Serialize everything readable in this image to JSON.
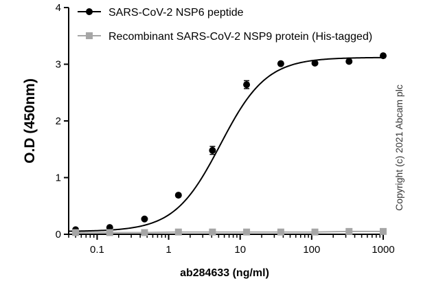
{
  "chart_data": {
    "type": "scatter",
    "xlabel": "ab284633 (ng/ml)",
    "ylabel": "O.D (450nm)",
    "xscale": "log",
    "xlim": [
      0.04,
      1000
    ],
    "ylim": [
      0,
      4
    ],
    "xticks": [
      0.1,
      1,
      10,
      100,
      1000
    ],
    "xtick_labels": [
      "0.1",
      "1",
      "10",
      "100",
      "1000"
    ],
    "yticks": [
      0,
      1,
      2,
      3,
      4
    ],
    "ytick_labels": [
      "0",
      "1",
      "2",
      "3",
      "4"
    ],
    "legend_position": "top-left",
    "series": [
      {
        "name": "SARS-CoV-2 NSP6 peptide",
        "marker": "circle",
        "color": "#000000",
        "fit": "sigmoidal",
        "x": [
          0.05,
          0.15,
          0.46,
          1.37,
          4.1,
          12.3,
          37,
          111,
          333,
          1000
        ],
        "y": [
          0.08,
          0.12,
          0.27,
          0.69,
          1.48,
          2.64,
          3.01,
          3.02,
          3.05,
          3.15
        ],
        "err": [
          0.01,
          0.01,
          0.01,
          0.02,
          0.07,
          0.07,
          0.02,
          0.02,
          0.02,
          0.02
        ]
      },
      {
        "name": "Recombinant SARS-CoV-2 NSP9 protein (His-tagged)",
        "marker": "square",
        "color": "#a6a6a6",
        "fit": "flat",
        "x": [
          0.05,
          0.15,
          0.46,
          1.37,
          4.1,
          12.3,
          37,
          111,
          333,
          1000
        ],
        "y": [
          0.03,
          0.03,
          0.03,
          0.04,
          0.04,
          0.04,
          0.04,
          0.04,
          0.05,
          0.05
        ]
      }
    ],
    "annotation": "Copyright (c) 2021 Abcam plc"
  }
}
